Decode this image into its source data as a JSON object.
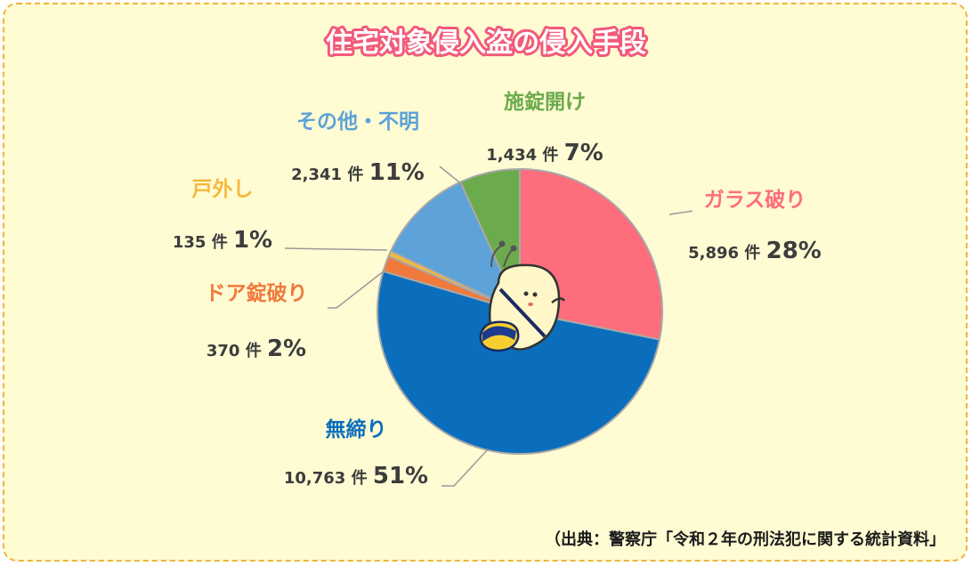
{
  "chart_data": {
    "type": "pie",
    "title": "住宅対象侵入盗の侵入手段",
    "count_unit": "件",
    "slices": [
      {
        "label": "ガラス破り",
        "count": "5,896",
        "percent": "28%",
        "value": 5896,
        "color": "#fd6d7c"
      },
      {
        "label": "無締り",
        "count": "10,763",
        "percent": "51%",
        "value": 10763,
        "color": "#0a6ebd"
      },
      {
        "label": "ドア錠破り",
        "count": "370",
        "percent": "2%",
        "value": 370,
        "color": "#f07a3c"
      },
      {
        "label": "戸外し",
        "count": "135",
        "percent": "1%",
        "value": 135,
        "color": "#f5b93d"
      },
      {
        "label": "その他・不明",
        "count": "2,341",
        "percent": "11%",
        "value": 2341,
        "color": "#5da2d8"
      },
      {
        "label": "施錠開け",
        "count": "1,434",
        "percent": "7%",
        "value": 1434,
        "color": "#6cab4c"
      }
    ],
    "legend": "none",
    "grid": false
  },
  "source_note": "（出典：警察庁「令和２年の刑法犯に関する統計資料」"
}
